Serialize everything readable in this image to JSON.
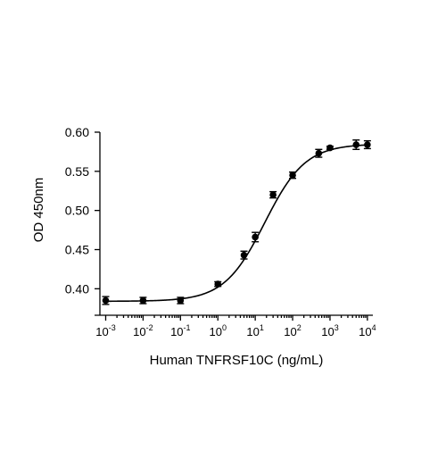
{
  "chart_data": {
    "type": "scatter",
    "title": "",
    "xlabel": "Human TNFRSF10C (ng/mL)",
    "ylabel": "OD 450nm",
    "xscale": "log",
    "xlim": [
      0.0007,
      14000
    ],
    "ylim": [
      0.373,
      0.6
    ],
    "x_ticks": [
      {
        "base": "10",
        "exp": "-3"
      },
      {
        "base": "10",
        "exp": "-2"
      },
      {
        "base": "10",
        "exp": "-1"
      },
      {
        "base": "10",
        "exp": "0"
      },
      {
        "base": "10",
        "exp": "1"
      },
      {
        "base": "10",
        "exp": "2"
      },
      {
        "base": "10",
        "exp": "3"
      },
      {
        "base": "10",
        "exp": "4"
      }
    ],
    "y_ticks": [
      "0.40",
      "0.45",
      "0.50",
      "0.55",
      "0.60"
    ],
    "y_tick_values": [
      0.4,
      0.45,
      0.5,
      0.55,
      0.6
    ],
    "grid": false,
    "legend": "none",
    "series": [
      {
        "x": [
          0.001,
          0.01,
          0.1,
          1,
          5,
          10,
          30,
          100,
          500,
          1000,
          5000,
          10000
        ],
        "y": [
          0.385,
          0.385,
          0.385,
          0.406,
          0.443,
          0.466,
          0.52,
          0.545,
          0.573,
          0.58,
          0.584,
          0.584
        ],
        "err": [
          0.005,
          0.004,
          0.004,
          0.003,
          0.005,
          0.006,
          0.004,
          0.004,
          0.005,
          0.002,
          0.006,
          0.005
        ],
        "fit": {
          "model": "4PL",
          "bottom": 0.384,
          "top": 0.585,
          "ec50": 18,
          "hill": 0.8
        },
        "marker_color": "#000000",
        "line_color": "#000000"
      }
    ]
  }
}
